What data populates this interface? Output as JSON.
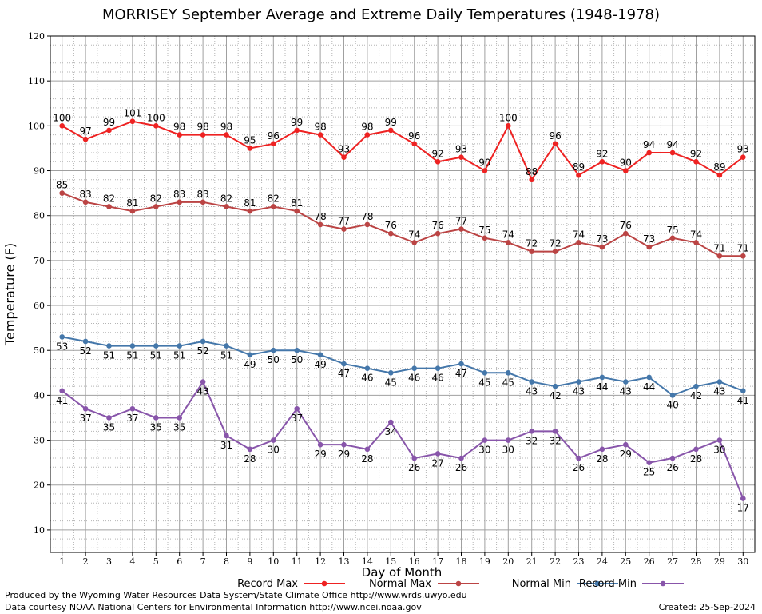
{
  "chart_data": {
    "type": "line",
    "title": "MORRISEY September Average and Extreme Daily Temperatures (1948-1978)",
    "xlabel": "Day of Month",
    "ylabel": "Temperature (F)",
    "ylim": [
      5,
      120
    ],
    "y_ticks": [
      10,
      20,
      30,
      40,
      50,
      60,
      70,
      80,
      90,
      100,
      110,
      120
    ],
    "xlim": [
      0.5,
      30.5
    ],
    "categories": [
      1,
      2,
      3,
      4,
      5,
      6,
      7,
      8,
      9,
      10,
      11,
      12,
      13,
      14,
      15,
      16,
      17,
      18,
      19,
      20,
      21,
      22,
      23,
      24,
      25,
      26,
      27,
      28,
      29,
      30
    ],
    "grid": true,
    "legend_position": "bottom",
    "series": [
      {
        "name": "Record Max",
        "color": "#ee2222",
        "label_position": "above",
        "values": [
          100,
          97,
          99,
          101,
          100,
          98,
          98,
          98,
          95,
          96,
          99,
          98,
          93,
          98,
          99,
          96,
          92,
          93,
          90,
          100,
          88,
          96,
          89,
          92,
          90,
          94,
          94,
          92,
          89,
          93
        ]
      },
      {
        "name": "Normal Max",
        "color": "#bb4444",
        "label_position": "above",
        "values": [
          85,
          83,
          82,
          81,
          82,
          83,
          83,
          82,
          81,
          82,
          81,
          78,
          77,
          78,
          76,
          74,
          76,
          77,
          75,
          74,
          72,
          72,
          74,
          73,
          76,
          73,
          75,
          74,
          71,
          71
        ]
      },
      {
        "name": "Normal Min",
        "color": "#4477aa",
        "label_position": "below",
        "values": [
          53,
          52,
          51,
          51,
          51,
          51,
          52,
          51,
          49,
          50,
          50,
          49,
          47,
          46,
          45,
          46,
          46,
          47,
          45,
          45,
          43,
          42,
          43,
          44,
          43,
          44,
          40,
          42,
          43,
          41
        ]
      },
      {
        "name": "Record Min",
        "color": "#8855aa",
        "label_position": "below",
        "values": [
          41,
          37,
          35,
          37,
          35,
          35,
          43,
          31,
          28,
          30,
          37,
          29,
          29,
          28,
          34,
          26,
          27,
          26,
          30,
          30,
          32,
          32,
          26,
          28,
          29,
          25,
          26,
          28,
          30,
          17
        ]
      }
    ]
  },
  "footer": {
    "produced_by": "Produced by the Wyoming Water Resources Data System/State Climate Office http://www.wrds.uwyo.edu",
    "courtesy": "Data courtesy NOAA National Centers for Environmental Information http://www.ncei.noaa.gov",
    "created": "Created: 25-Sep-2024"
  }
}
